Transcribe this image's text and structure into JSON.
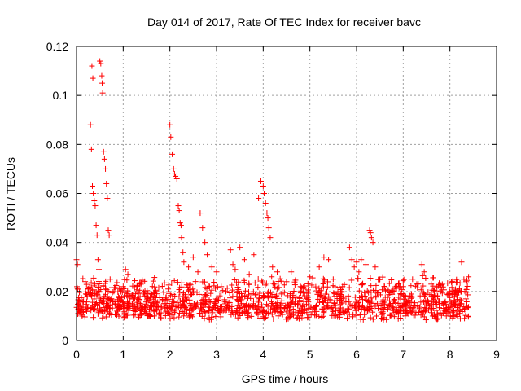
{
  "chart_data": {
    "type": "scatter",
    "title": "Day 014 of 2017, Rate Of TEC Index for receiver bavc",
    "xlabel": "GPS time / hours",
    "ylabel": "ROTI / TECUs",
    "xlim": [
      0,
      9
    ],
    "ylim": [
      0,
      0.12
    ],
    "xticks": [
      0,
      1,
      2,
      3,
      4,
      5,
      6,
      7,
      8,
      9
    ],
    "yticks": [
      0,
      0.02,
      0.04,
      0.06,
      0.08,
      0.1,
      0.12
    ],
    "ytick_labels": [
      "0",
      "0.02",
      "0.04",
      "0.06",
      "0.08",
      "0.1",
      "0.12"
    ],
    "grid": true,
    "marker": "+",
    "marker_color": "#ff0000",
    "x_extent_data": [
      0,
      8.4
    ],
    "background_band_y": [
      0.005,
      0.028
    ],
    "points": [
      [
        0.0,
        0.033
      ],
      [
        0.02,
        0.031
      ],
      [
        0.05,
        0.014
      ],
      [
        0.08,
        0.012
      ],
      [
        0.12,
        0.01
      ],
      [
        0.15,
        0.016
      ],
      [
        0.2,
        0.019
      ],
      [
        0.25,
        0.021
      ],
      [
        0.3,
        0.088
      ],
      [
        0.32,
        0.078
      ],
      [
        0.34,
        0.063
      ],
      [
        0.36,
        0.06
      ],
      [
        0.38,
        0.057
      ],
      [
        0.4,
        0.055
      ],
      [
        0.42,
        0.047
      ],
      [
        0.44,
        0.043
      ],
      [
        0.46,
        0.033
      ],
      [
        0.48,
        0.029
      ],
      [
        0.5,
        0.114
      ],
      [
        0.52,
        0.113
      ],
      [
        0.54,
        0.108
      ],
      [
        0.55,
        0.105
      ],
      [
        0.56,
        0.101
      ],
      [
        0.33,
        0.112
      ],
      [
        0.35,
        0.107
      ],
      [
        0.58,
        0.077
      ],
      [
        0.6,
        0.074
      ],
      [
        0.62,
        0.07
      ],
      [
        0.64,
        0.064
      ],
      [
        0.66,
        0.058
      ],
      [
        0.68,
        0.045
      ],
      [
        0.7,
        0.043
      ],
      [
        0.72,
        0.025
      ],
      [
        0.8,
        0.02
      ],
      [
        0.9,
        0.018
      ],
      [
        1.0,
        0.022
      ],
      [
        1.05,
        0.029
      ],
      [
        1.1,
        0.027
      ],
      [
        1.2,
        0.014
      ],
      [
        1.3,
        0.017
      ],
      [
        1.5,
        0.018
      ],
      [
        1.7,
        0.02
      ],
      [
        1.9,
        0.015
      ],
      [
        2.0,
        0.088
      ],
      [
        2.02,
        0.083
      ],
      [
        2.05,
        0.076
      ],
      [
        2.08,
        0.07
      ],
      [
        2.1,
        0.068
      ],
      [
        2.12,
        0.067
      ],
      [
        2.15,
        0.066
      ],
      [
        2.18,
        0.055
      ],
      [
        2.2,
        0.053
      ],
      [
        2.22,
        0.048
      ],
      [
        2.24,
        0.047
      ],
      [
        2.25,
        0.042
      ],
      [
        2.28,
        0.036
      ],
      [
        2.3,
        0.032
      ],
      [
        2.4,
        0.03
      ],
      [
        2.5,
        0.034
      ],
      [
        2.6,
        0.028
      ],
      [
        2.65,
        0.052
      ],
      [
        2.7,
        0.046
      ],
      [
        2.75,
        0.04
      ],
      [
        2.8,
        0.035
      ],
      [
        2.9,
        0.03
      ],
      [
        3.0,
        0.028
      ],
      [
        3.1,
        0.022
      ],
      [
        3.2,
        0.02
      ],
      [
        3.3,
        0.037
      ],
      [
        3.35,
        0.031
      ],
      [
        3.4,
        0.029
      ],
      [
        3.5,
        0.038
      ],
      [
        3.6,
        0.033
      ],
      [
        3.7,
        0.027
      ],
      [
        3.8,
        0.035
      ],
      [
        3.9,
        0.058
      ],
      [
        3.95,
        0.065
      ],
      [
        4.0,
        0.063
      ],
      [
        4.02,
        0.06
      ],
      [
        4.05,
        0.056
      ],
      [
        4.08,
        0.052
      ],
      [
        4.1,
        0.05
      ],
      [
        4.12,
        0.046
      ],
      [
        4.15,
        0.042
      ],
      [
        4.2,
        0.03
      ],
      [
        4.3,
        0.028
      ],
      [
        4.5,
        0.024
      ],
      [
        4.6,
        0.028
      ],
      [
        4.8,
        0.022
      ],
      [
        5.0,
        0.026
      ],
      [
        5.2,
        0.03
      ],
      [
        5.3,
        0.034
      ],
      [
        5.4,
        0.033
      ],
      [
        5.5,
        0.025
      ],
      [
        5.7,
        0.022
      ],
      [
        5.85,
        0.038
      ],
      [
        5.9,
        0.033
      ],
      [
        5.95,
        0.03
      ],
      [
        6.0,
        0.032
      ],
      [
        6.05,
        0.028
      ],
      [
        6.1,
        0.033
      ],
      [
        6.2,
        0.031
      ],
      [
        6.28,
        0.045
      ],
      [
        6.3,
        0.044
      ],
      [
        6.32,
        0.042
      ],
      [
        6.35,
        0.04
      ],
      [
        6.4,
        0.03
      ],
      [
        6.5,
        0.025
      ],
      [
        6.6,
        0.022
      ],
      [
        6.8,
        0.02
      ],
      [
        7.0,
        0.022
      ],
      [
        7.2,
        0.025
      ],
      [
        7.4,
        0.031
      ],
      [
        7.45,
        0.028
      ],
      [
        7.6,
        0.023
      ],
      [
        7.8,
        0.02
      ],
      [
        8.0,
        0.02
      ],
      [
        8.1,
        0.018
      ],
      [
        8.2,
        0.015
      ],
      [
        8.25,
        0.032
      ],
      [
        8.3,
        0.025
      ],
      [
        8.35,
        0.024
      ],
      [
        8.4,
        0.026
      ]
    ]
  }
}
